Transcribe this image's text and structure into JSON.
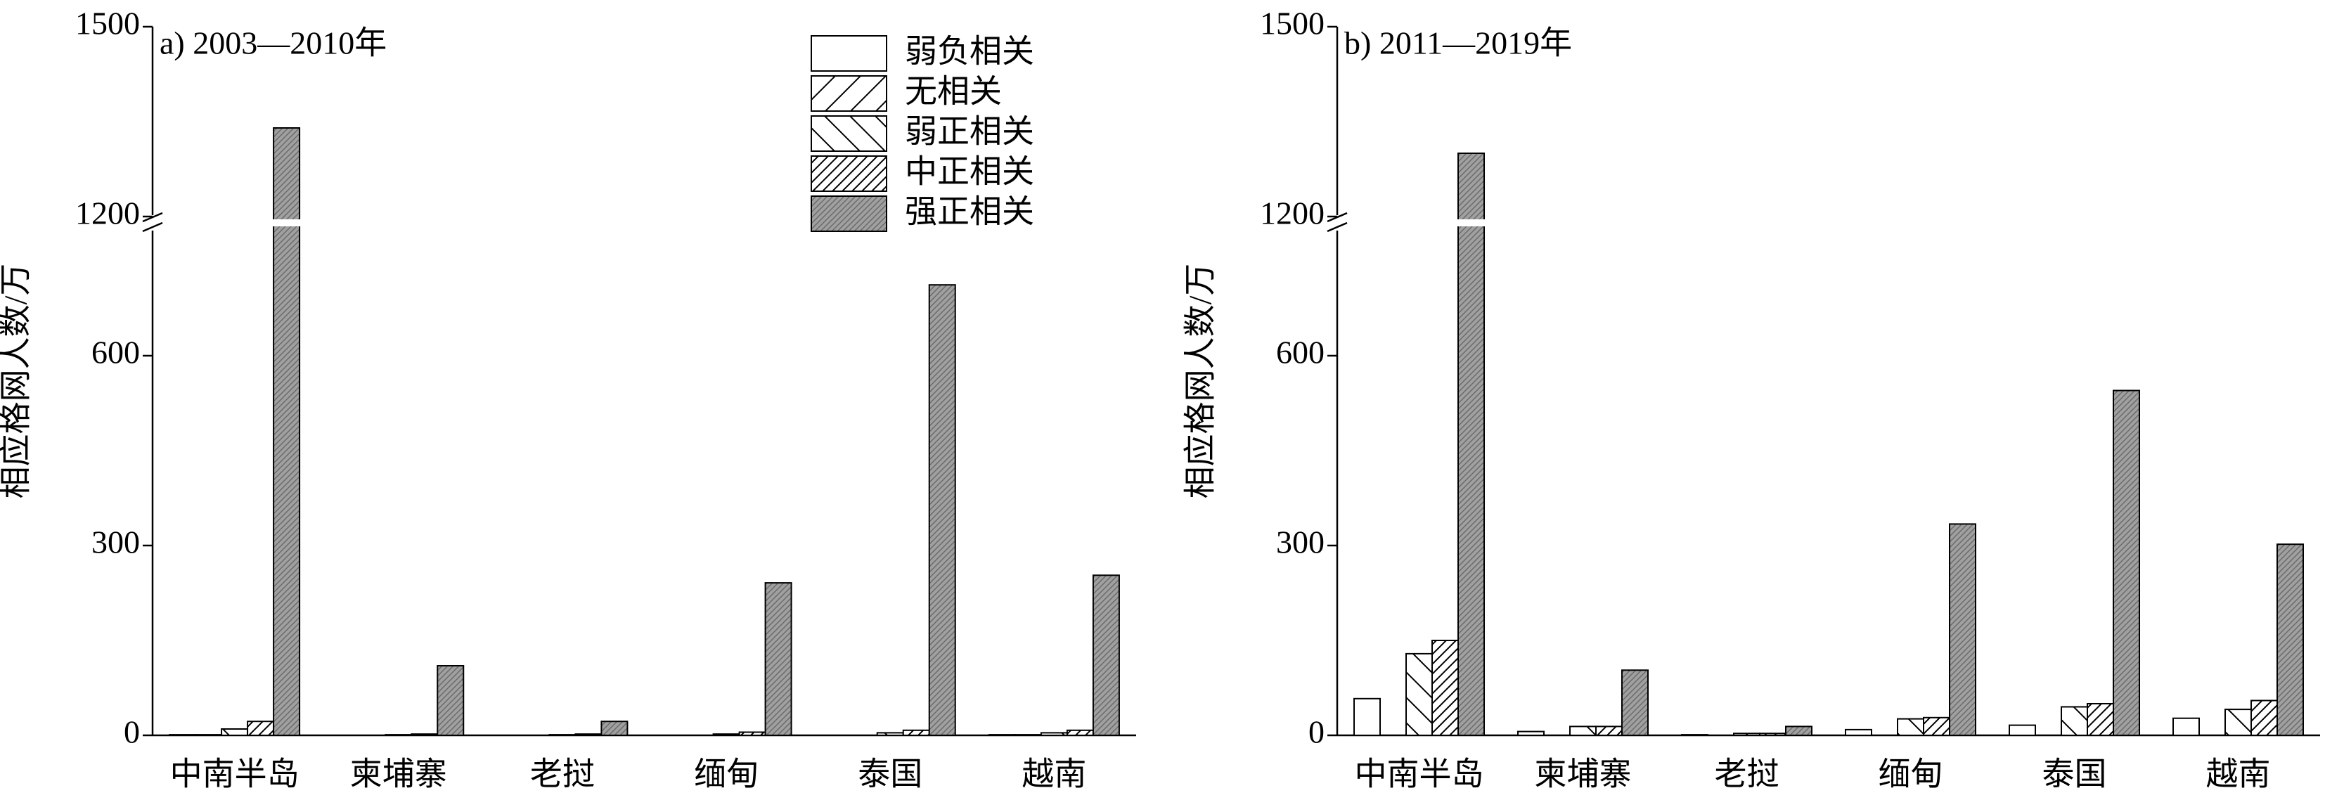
{
  "chart_data": [
    {
      "type": "bar",
      "title": "a) 2003—2010年",
      "y_label": "相应格网人数/万",
      "categories": [
        "中南半岛",
        "柬埔寨",
        "老挝",
        "缅甸",
        "泰国",
        "越南"
      ],
      "series": [
        {
          "name": "弱负相关",
          "pattern": "none",
          "values": [
            1,
            0,
            0,
            0,
            0,
            1
          ]
        },
        {
          "name": "无相关",
          "pattern": "slash",
          "values": [
            1,
            0,
            0,
            0,
            0,
            1
          ]
        },
        {
          "name": "弱正相关",
          "pattern": "backslash",
          "values": [
            10,
            1,
            1,
            2,
            4,
            4
          ]
        },
        {
          "name": "中正相关",
          "pattern": "dense-slash",
          "values": [
            22,
            2,
            2,
            5,
            8,
            8
          ]
        },
        {
          "name": "强正相关",
          "pattern": "gray",
          "values": [
            1340,
            110,
            22,
            241,
            712,
            253
          ]
        }
      ],
      "ylim": [
        0,
        1500
      ],
      "axis_break": [
        800,
        1200
      ],
      "yticks": [
        0,
        300,
        600,
        1200,
        1500
      ],
      "legend": "upper right"
    },
    {
      "type": "bar",
      "title": "b) 2011—2019年",
      "y_label": "相应格网人数/万",
      "categories": [
        "中南半岛",
        "柬埔寨",
        "老挝",
        "缅甸",
        "泰国",
        "越南"
      ],
      "series": [
        {
          "values": [
            58,
            6,
            1,
            9,
            16,
            27
          ]
        },
        {
          "values": [
            0,
            0,
            0,
            0,
            0,
            0
          ]
        },
        {
          "values": [
            129,
            14,
            3,
            26,
            45,
            41
          ]
        },
        {
          "values": [
            150,
            14,
            3,
            28,
            50,
            55
          ]
        },
        {
          "values": [
            1300,
            103,
            14,
            334,
            545,
            302
          ]
        }
      ],
      "ylim": [
        0,
        1500
      ],
      "axis_break": [
        800,
        1200
      ],
      "yticks": [
        0,
        300,
        600,
        1200,
        1500
      ]
    }
  ]
}
